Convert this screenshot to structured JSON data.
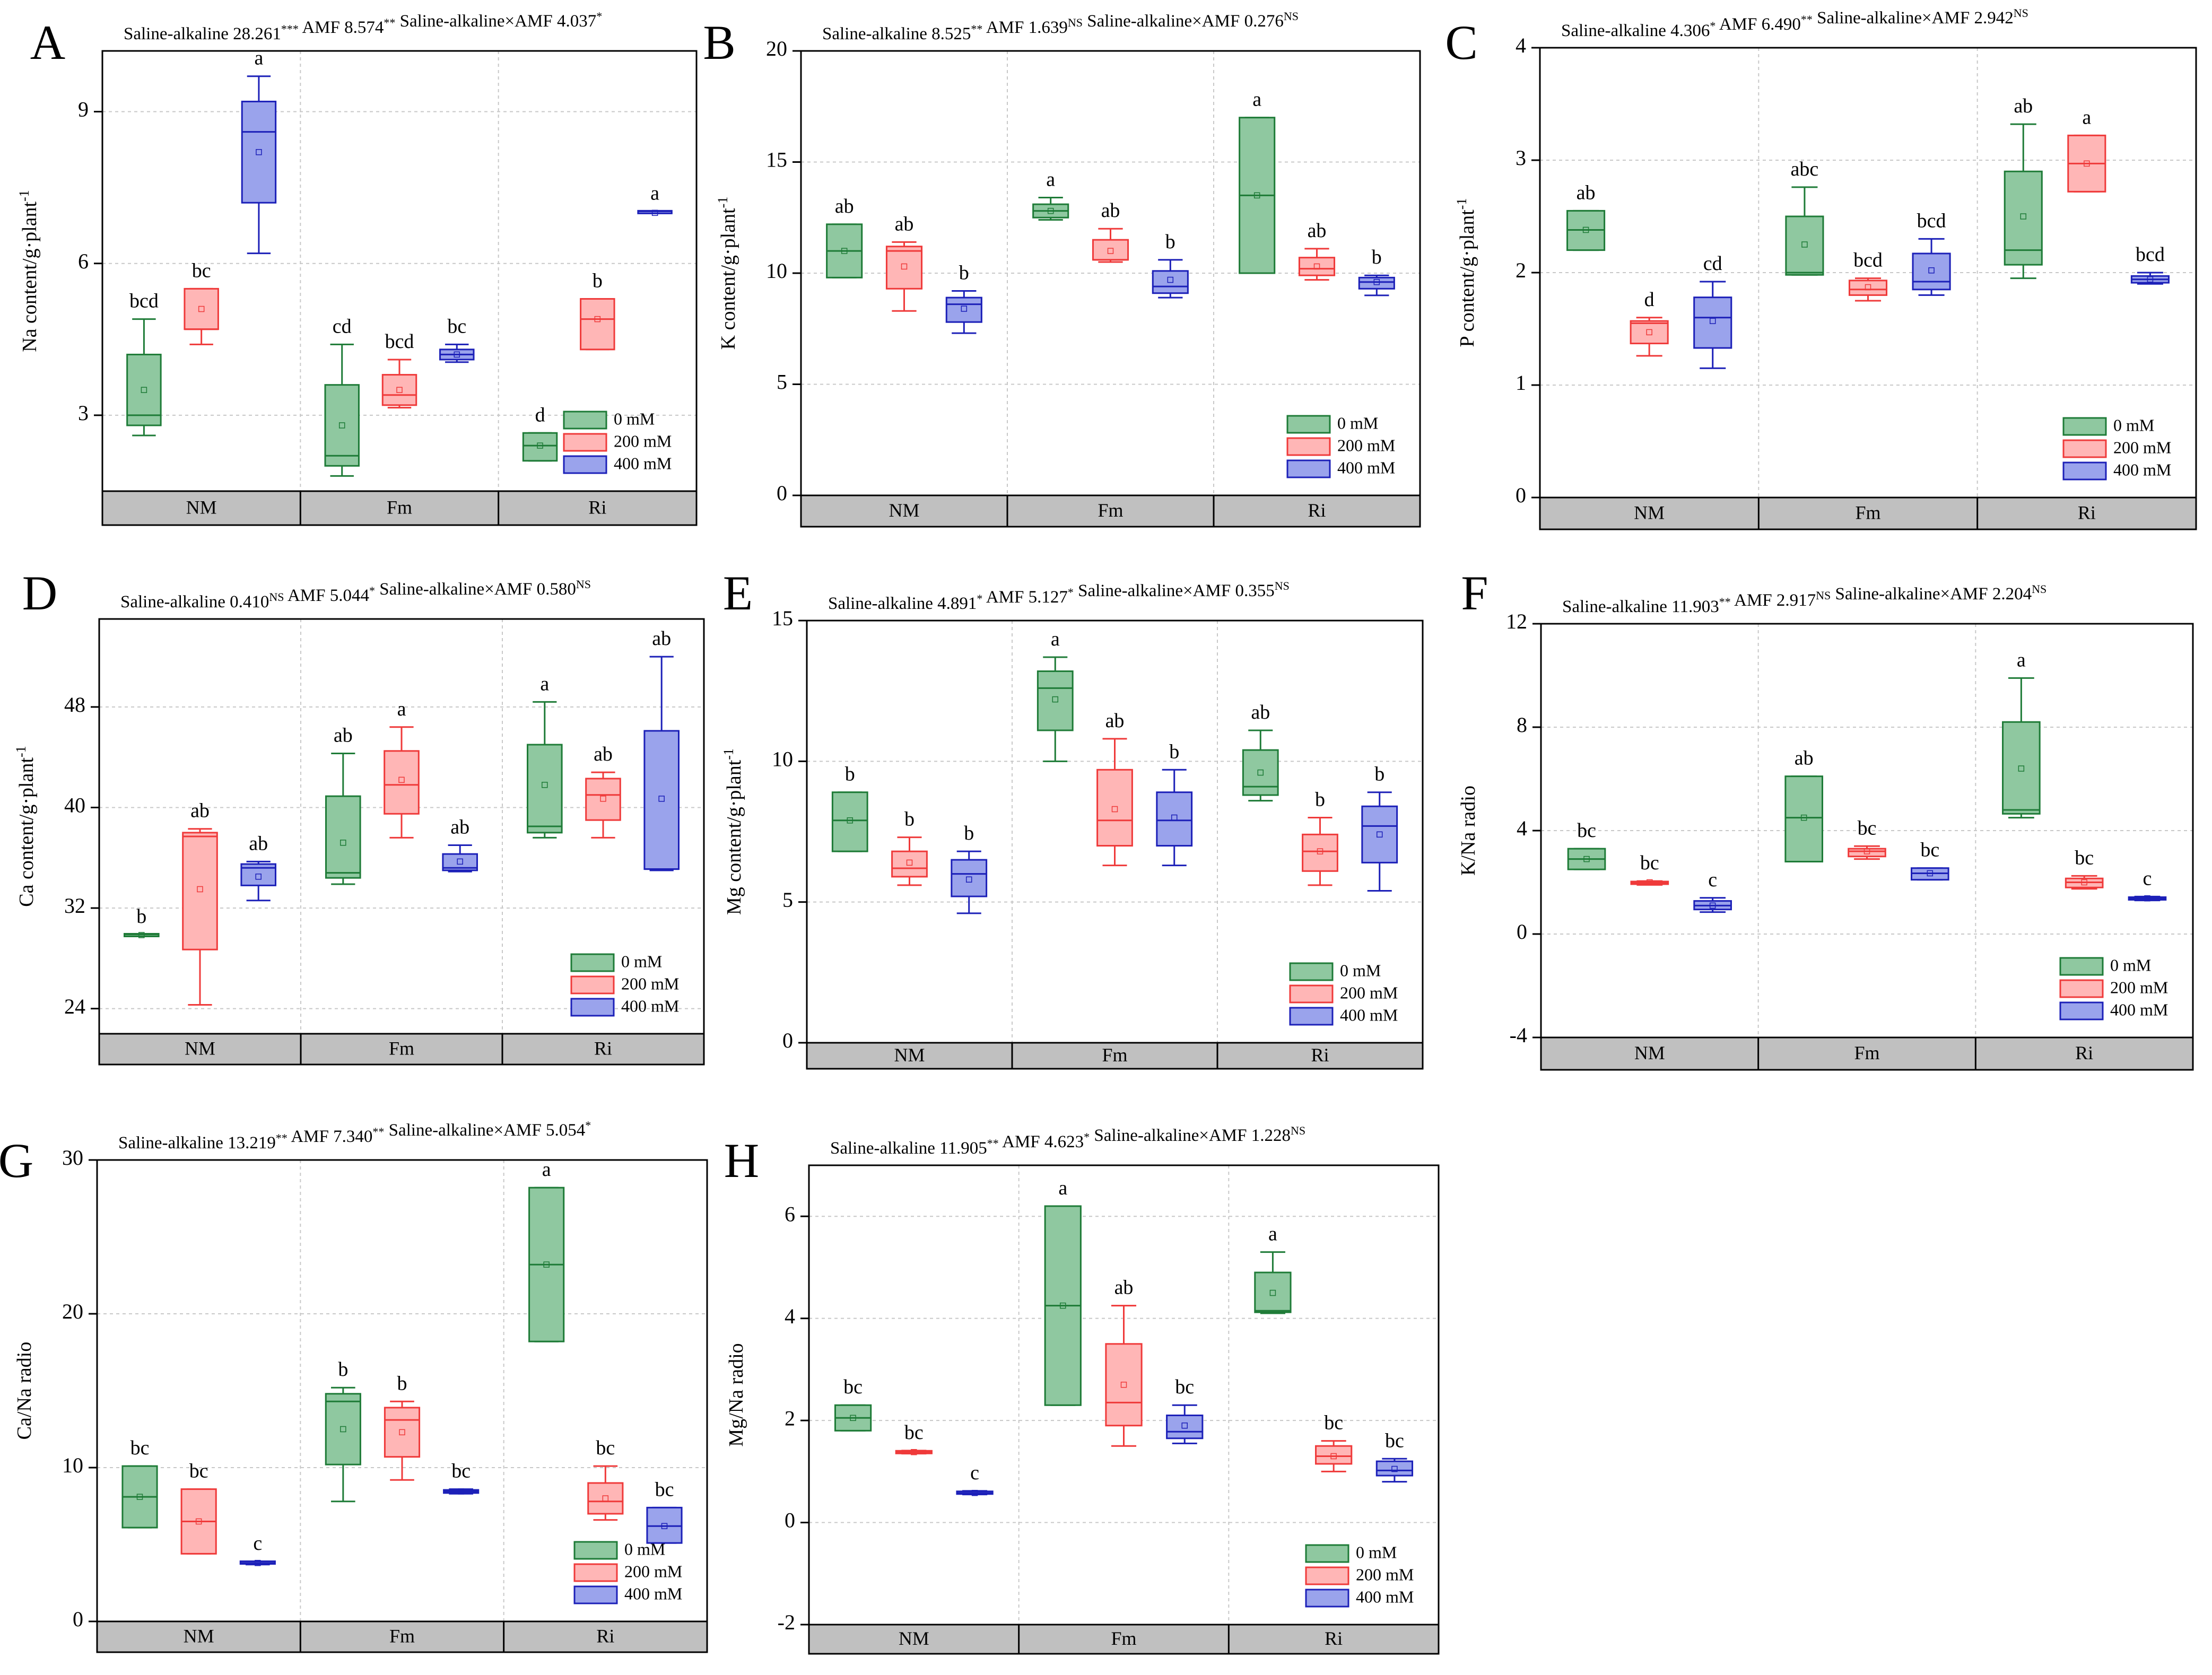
{
  "groups": [
    "NM",
    "Fm",
    "Ri"
  ],
  "legend": [
    "0 mM",
    "200 mM",
    "400 mM"
  ],
  "colors": {
    "stroke": [
      "#1e7b37",
      "#ef3a3a",
      "#1c20b8"
    ],
    "fill": [
      "#8fc8a0",
      "#ffb6b6",
      "#9aa3ec"
    ],
    "band": "#c0c0c0",
    "grid": "#c8c8c8"
  },
  "chart_data": [
    {
      "id": "A",
      "type": "box",
      "ylabel": "Na content/g·plant-1",
      "ylabel_main": "Na content/g·plant",
      "ylabel_sup": "-1",
      "stats": [
        {
          "t": "Saline-alkaline 28.261",
          "s": "***"
        },
        {
          "t": " AMF 8.574",
          "s": "**"
        },
        {
          "t": " Saline-alkaline×AMF 4.037",
          "s": "*"
        }
      ],
      "ylim": [
        1.5,
        10.2
      ],
      "ticks": [
        3,
        6,
        9
      ],
      "boxes": [
        [
          {
            "min": 2.6,
            "q1": 2.8,
            "med": 3.0,
            "q3": 4.2,
            "max": 4.9,
            "mean": 3.5,
            "label": "bcd"
          },
          {
            "min": 4.4,
            "q1": 4.7,
            "med": 4.7,
            "q3": 5.5,
            "max": 5.5,
            "mean": 5.1,
            "label": "bc"
          },
          {
            "min": 6.2,
            "q1": 7.2,
            "med": 8.6,
            "q3": 9.2,
            "max": 9.7,
            "mean": 8.2,
            "label": "a"
          }
        ],
        [
          {
            "min": 1.8,
            "q1": 2.0,
            "med": 2.2,
            "q3": 3.6,
            "max": 4.4,
            "mean": 2.8,
            "label": "cd"
          },
          {
            "min": 3.15,
            "q1": 3.2,
            "med": 3.4,
            "q3": 3.8,
            "max": 4.1,
            "mean": 3.5,
            "label": "bcd"
          },
          {
            "min": 4.05,
            "q1": 4.1,
            "med": 4.2,
            "q3": 4.3,
            "max": 4.4,
            "mean": 4.2,
            "label": "bc"
          }
        ],
        [
          {
            "min": 2.1,
            "q1": 2.1,
            "med": 2.4,
            "q3": 2.65,
            "max": 2.65,
            "mean": 2.4,
            "label": "d"
          },
          {
            "min": 4.3,
            "q1": 4.3,
            "med": 4.9,
            "q3": 5.3,
            "max": 5.3,
            "mean": 4.9,
            "label": "b"
          },
          {
            "min": 7.0,
            "q1": 7.0,
            "med": 7.03,
            "q3": 7.03,
            "max": 7.03,
            "mean": 7.0,
            "label": "a"
          }
        ]
      ]
    },
    {
      "id": "B",
      "type": "box",
      "ylabel": "K content/g·plant-1",
      "ylabel_main": "K content/g·plant",
      "ylabel_sup": "-1",
      "stats": [
        {
          "t": "Saline-alkaline 8.525",
          "s": "**"
        },
        {
          "t": " AMF 1.639",
          "s": "NS"
        },
        {
          "t": " Saline-alkaline×AMF 0.276",
          "s": "NS"
        }
      ],
      "ylim": [
        0,
        20
      ],
      "ticks": [
        0,
        5,
        10,
        15,
        20
      ],
      "boxes": [
        [
          {
            "min": 9.8,
            "q1": 9.8,
            "med": 11.0,
            "q3": 12.2,
            "max": 12.2,
            "mean": 11.0,
            "label": "ab"
          },
          {
            "min": 8.3,
            "q1": 9.3,
            "med": 11.0,
            "q3": 11.2,
            "max": 11.4,
            "mean": 10.3,
            "label": "ab"
          },
          {
            "min": 7.3,
            "q1": 7.8,
            "med": 8.6,
            "q3": 8.9,
            "max": 9.2,
            "mean": 8.4,
            "label": "b"
          }
        ],
        [
          {
            "min": 12.4,
            "q1": 12.5,
            "med": 12.8,
            "q3": 13.1,
            "max": 13.4,
            "mean": 12.8,
            "label": "a"
          },
          {
            "min": 10.5,
            "q1": 10.6,
            "med": 10.6,
            "q3": 11.5,
            "max": 12.0,
            "mean": 11.0,
            "label": "ab"
          },
          {
            "min": 8.9,
            "q1": 9.1,
            "med": 9.4,
            "q3": 10.1,
            "max": 10.6,
            "mean": 9.7,
            "label": "b"
          }
        ],
        [
          {
            "min": 10.0,
            "q1": 10.0,
            "med": 13.5,
            "q3": 17.0,
            "max": 17.0,
            "mean": 13.5,
            "label": "a"
          },
          {
            "min": 9.7,
            "q1": 9.9,
            "med": 10.2,
            "q3": 10.7,
            "max": 11.1,
            "mean": 10.3,
            "label": "ab"
          },
          {
            "min": 9.0,
            "q1": 9.3,
            "med": 9.6,
            "q3": 9.8,
            "max": 9.9,
            "mean": 9.6,
            "label": "b"
          }
        ]
      ]
    },
    {
      "id": "C",
      "type": "box",
      "ylabel": "P content/g·plant-1",
      "ylabel_main": "P content/g·plant",
      "ylabel_sup": "-1",
      "stats": [
        {
          "t": "Saline-alkaline 4.306",
          "s": "*"
        },
        {
          "t": " AMF 6.490",
          "s": "**"
        },
        {
          "t": " Saline-alkaline×AMF 2.942",
          "s": "NS"
        }
      ],
      "ylim": [
        0,
        4
      ],
      "ticks": [
        0,
        1,
        2,
        3,
        4
      ],
      "boxes": [
        [
          {
            "min": 2.2,
            "q1": 2.2,
            "med": 2.38,
            "q3": 2.55,
            "max": 2.55,
            "mean": 2.38,
            "label": "ab"
          },
          {
            "min": 1.26,
            "q1": 1.37,
            "med": 1.55,
            "q3": 1.57,
            "max": 1.6,
            "mean": 1.47,
            "label": "d"
          },
          {
            "min": 1.15,
            "q1": 1.33,
            "med": 1.6,
            "q3": 1.78,
            "max": 1.92,
            "mean": 1.57,
            "label": "cd"
          }
        ],
        [
          {
            "min": 1.98,
            "q1": 1.98,
            "med": 2.0,
            "q3": 2.5,
            "max": 2.76,
            "mean": 2.25,
            "label": "abc"
          },
          {
            "min": 1.75,
            "q1": 1.8,
            "med": 1.85,
            "q3": 1.93,
            "max": 1.95,
            "mean": 1.87,
            "label": "bcd"
          },
          {
            "min": 1.8,
            "q1": 1.85,
            "med": 1.92,
            "q3": 2.17,
            "max": 2.3,
            "mean": 2.02,
            "label": "bcd"
          }
        ],
        [
          {
            "min": 1.95,
            "q1": 2.07,
            "med": 2.2,
            "q3": 2.9,
            "max": 3.32,
            "mean": 2.5,
            "label": "ab"
          },
          {
            "min": 2.72,
            "q1": 2.72,
            "med": 2.97,
            "q3": 3.22,
            "max": 3.22,
            "mean": 2.97,
            "label": "a"
          },
          {
            "min": 1.9,
            "q1": 1.91,
            "med": 1.94,
            "q3": 1.97,
            "max": 2.0,
            "mean": 1.94,
            "label": "bcd"
          }
        ]
      ]
    },
    {
      "id": "D",
      "type": "box",
      "ylabel": "Ca content/g·plant-1",
      "ylabel_main": "Ca content/g·plant",
      "ylabel_sup": "-1",
      "stats": [
        {
          "t": "Saline-alkaline 0.410",
          "s": "NS"
        },
        {
          "t": " AMF 5.044",
          "s": "*"
        },
        {
          "t": " Saline-alkaline×AMF 0.580",
          "s": "NS"
        }
      ],
      "ylim": [
        22,
        55
      ],
      "ticks": [
        24,
        32,
        40,
        48
      ],
      "boxes": [
        [
          {
            "min": 29.8,
            "q1": 29.8,
            "med": 29.9,
            "q3": 29.9,
            "max": 29.9,
            "mean": 29.85,
            "label": "b"
          },
          {
            "min": 24.3,
            "q1": 28.7,
            "med": 37.7,
            "q3": 38.0,
            "max": 38.3,
            "mean": 33.5,
            "label": "ab"
          },
          {
            "min": 32.6,
            "q1": 33.8,
            "med": 35.2,
            "q3": 35.5,
            "max": 35.7,
            "mean": 34.5,
            "label": "ab"
          }
        ],
        [
          {
            "min": 33.9,
            "q1": 34.4,
            "med": 34.8,
            "q3": 40.9,
            "max": 44.3,
            "mean": 37.2,
            "label": "ab"
          },
          {
            "min": 37.6,
            "q1": 39.5,
            "med": 41.8,
            "q3": 44.5,
            "max": 46.4,
            "mean": 42.2,
            "label": "a"
          },
          {
            "min": 34.9,
            "q1": 35.0,
            "med": 35.2,
            "q3": 36.3,
            "max": 37.0,
            "mean": 35.7,
            "label": "ab"
          }
        ],
        [
          {
            "min": 37.6,
            "q1": 38.0,
            "med": 38.5,
            "q3": 45.0,
            "max": 48.4,
            "mean": 41.8,
            "label": "a"
          },
          {
            "min": 37.6,
            "q1": 39.0,
            "med": 41.0,
            "q3": 42.3,
            "max": 42.8,
            "mean": 40.7,
            "label": "ab"
          },
          {
            "min": 35.0,
            "q1": 35.1,
            "med": 35.1,
            "q3": 46.1,
            "max": 52.0,
            "mean": 40.7,
            "label": "ab"
          }
        ]
      ]
    },
    {
      "id": "E",
      "type": "box",
      "ylabel": "Mg content/g·plant-1",
      "ylabel_main": "Mg content/g·plant",
      "ylabel_sup": "-1",
      "stats": [
        {
          "t": "Saline-alkaline 4.891",
          "s": "*"
        },
        {
          "t": " AMF 5.127",
          "s": "*"
        },
        {
          "t": " Saline-alkaline×AMF 0.355",
          "s": "NS"
        }
      ],
      "ylim": [
        0,
        15
      ],
      "ticks": [
        0,
        5,
        10,
        15
      ],
      "boxes": [
        [
          {
            "min": 6.8,
            "q1": 6.8,
            "med": 7.9,
            "q3": 8.9,
            "max": 8.9,
            "mean": 7.9,
            "label": "b"
          },
          {
            "min": 5.6,
            "q1": 5.9,
            "med": 6.2,
            "q3": 6.8,
            "max": 7.3,
            "mean": 6.4,
            "label": "b"
          },
          {
            "min": 4.6,
            "q1": 5.2,
            "med": 6.0,
            "q3": 6.5,
            "max": 6.8,
            "mean": 5.8,
            "label": "b"
          }
        ],
        [
          {
            "min": 10.0,
            "q1": 11.1,
            "med": 12.6,
            "q3": 13.2,
            "max": 13.7,
            "mean": 12.2,
            "label": "a"
          },
          {
            "min": 6.3,
            "q1": 7.0,
            "med": 7.9,
            "q3": 9.7,
            "max": 10.8,
            "mean": 8.3,
            "label": "ab"
          },
          {
            "min": 6.3,
            "q1": 7.0,
            "med": 7.9,
            "q3": 8.9,
            "max": 9.7,
            "mean": 8.0,
            "label": "b"
          }
        ],
        [
          {
            "min": 8.6,
            "q1": 8.8,
            "med": 9.1,
            "q3": 10.4,
            "max": 11.1,
            "mean": 9.6,
            "label": "ab"
          },
          {
            "min": 5.6,
            "q1": 6.1,
            "med": 6.8,
            "q3": 7.4,
            "max": 8.0,
            "mean": 6.8,
            "label": "b"
          },
          {
            "min": 5.4,
            "q1": 6.4,
            "med": 7.7,
            "q3": 8.4,
            "max": 8.9,
            "mean": 7.4,
            "label": "b"
          }
        ]
      ]
    },
    {
      "id": "F",
      "type": "box",
      "ylabel": "K/Na radio",
      "stats": [
        {
          "t": "Saline-alkaline 11.903",
          "s": "**"
        },
        {
          "t": " AMF 2.917",
          "s": "NS"
        },
        {
          "t": " Saline-alkaline×AMF 2.204",
          "s": "NS"
        }
      ],
      "ylim": [
        -4,
        12
      ],
      "ticks": [
        -4,
        0,
        4,
        8,
        12
      ],
      "boxes": [
        [
          {
            "min": 2.5,
            "q1": 2.5,
            "med": 2.9,
            "q3": 3.3,
            "max": 3.3,
            "mean": 2.9,
            "label": "bc"
          },
          {
            "min": 1.9,
            "q1": 1.93,
            "med": 1.98,
            "q3": 2.03,
            "max": 2.05,
            "mean": 2.0,
            "label": "bc"
          },
          {
            "min": 0.85,
            "q1": 0.95,
            "med": 1.1,
            "q3": 1.28,
            "max": 1.4,
            "mean": 1.1,
            "label": "c"
          }
        ],
        [
          {
            "min": 2.8,
            "q1": 2.8,
            "med": 4.5,
            "q3": 6.1,
            "max": 6.1,
            "mean": 4.5,
            "label": "ab"
          },
          {
            "min": 2.9,
            "q1": 3.0,
            "med": 3.2,
            "q3": 3.3,
            "max": 3.4,
            "mean": 3.2,
            "label": "bc"
          },
          {
            "min": 2.1,
            "q1": 2.1,
            "med": 2.35,
            "q3": 2.55,
            "max": 2.55,
            "mean": 2.35,
            "label": "bc"
          }
        ],
        [
          {
            "min": 4.5,
            "q1": 4.65,
            "med": 4.8,
            "q3": 8.2,
            "max": 9.9,
            "mean": 6.4,
            "label": "a"
          },
          {
            "min": 1.75,
            "q1": 1.8,
            "med": 2.0,
            "q3": 2.15,
            "max": 2.25,
            "mean": 2.0,
            "label": "bc"
          },
          {
            "min": 1.3,
            "q1": 1.33,
            "med": 1.38,
            "q3": 1.42,
            "max": 1.45,
            "mean": 1.38,
            "label": "c"
          }
        ]
      ]
    },
    {
      "id": "G",
      "type": "box",
      "ylabel": "Ca/Na radio",
      "stats": [
        {
          "t": "Saline-alkaline 13.219",
          "s": "**"
        },
        {
          "t": " AMF 7.340",
          "s": "**"
        },
        {
          "t": "  Saline-alkaline×AMF 5.054",
          "s": "*"
        }
      ],
      "ylim": [
        0,
        30
      ],
      "ticks": [
        0,
        10,
        20,
        30
      ],
      "boxes": [
        [
          {
            "min": 6.1,
            "q1": 6.1,
            "med": 8.1,
            "q3": 10.1,
            "max": 10.1,
            "mean": 8.1,
            "label": "bc"
          },
          {
            "min": 4.4,
            "q1": 4.4,
            "med": 6.5,
            "q3": 8.6,
            "max": 8.6,
            "mean": 6.5,
            "label": "bc"
          },
          {
            "min": 3.7,
            "q1": 3.75,
            "med": 3.8,
            "q3": 3.9,
            "max": 3.9,
            "mean": 3.8,
            "label": "c"
          }
        ],
        [
          {
            "min": 7.8,
            "q1": 10.2,
            "med": 14.3,
            "q3": 14.8,
            "max": 15.2,
            "mean": 12.5,
            "label": "b"
          },
          {
            "min": 9.2,
            "q1": 10.7,
            "med": 13.1,
            "q3": 13.9,
            "max": 14.3,
            "mean": 12.3,
            "label": "b"
          },
          {
            "min": 8.3,
            "q1": 8.35,
            "med": 8.45,
            "q3": 8.55,
            "max": 8.6,
            "mean": 8.45,
            "label": "bc"
          }
        ],
        [
          {
            "min": 18.2,
            "q1": 18.2,
            "med": 23.2,
            "q3": 28.2,
            "max": 28.2,
            "mean": 23.2,
            "label": "a"
          },
          {
            "min": 6.6,
            "q1": 7.0,
            "med": 7.8,
            "q3": 9.0,
            "max": 10.1,
            "mean": 8.0,
            "label": "bc"
          },
          {
            "min": 5.1,
            "q1": 5.1,
            "med": 6.2,
            "q3": 7.4,
            "max": 7.4,
            "mean": 6.2,
            "label": "bc"
          }
        ]
      ]
    },
    {
      "id": "H",
      "type": "box",
      "ylabel": "Mg/Na radio",
      "stats": [
        {
          "t": "Saline-alkaline 11.905",
          "s": "**"
        },
        {
          "t": " AMF 4.623",
          "s": "*"
        },
        {
          "t": "  Saline-alkaline×AMF 1.228",
          "s": "NS"
        }
      ],
      "ylim": [
        -2,
        7
      ],
      "ticks": [
        -2,
        0,
        2,
        4,
        6
      ],
      "boxes": [
        [
          {
            "min": 1.8,
            "q1": 1.8,
            "med": 2.05,
            "q3": 2.3,
            "max": 2.3,
            "mean": 2.05,
            "label": "bc"
          },
          {
            "min": 1.35,
            "q1": 1.36,
            "med": 1.38,
            "q3": 1.4,
            "max": 1.41,
            "mean": 1.38,
            "label": "bc"
          },
          {
            "min": 0.55,
            "q1": 0.56,
            "med": 0.58,
            "q3": 0.61,
            "max": 0.62,
            "mean": 0.58,
            "label": "c"
          }
        ],
        [
          {
            "min": 2.3,
            "q1": 2.3,
            "med": 4.25,
            "q3": 6.2,
            "max": 6.2,
            "mean": 4.25,
            "label": "a"
          },
          {
            "min": 1.5,
            "q1": 1.9,
            "med": 2.35,
            "q3": 3.5,
            "max": 4.25,
            "mean": 2.7,
            "label": "ab"
          },
          {
            "min": 1.55,
            "q1": 1.65,
            "med": 1.78,
            "q3": 2.1,
            "max": 2.3,
            "mean": 1.9,
            "label": "bc"
          }
        ],
        [
          {
            "min": 4.1,
            "q1": 4.12,
            "med": 4.15,
            "q3": 4.9,
            "max": 5.3,
            "mean": 4.5,
            "label": "a"
          },
          {
            "min": 1.0,
            "q1": 1.15,
            "med": 1.3,
            "q3": 1.5,
            "max": 1.6,
            "mean": 1.3,
            "label": "bc"
          },
          {
            "min": 0.8,
            "q1": 0.92,
            "med": 1.02,
            "q3": 1.2,
            "max": 1.25,
            "mean": 1.05,
            "label": "bc"
          }
        ]
      ]
    }
  ]
}
